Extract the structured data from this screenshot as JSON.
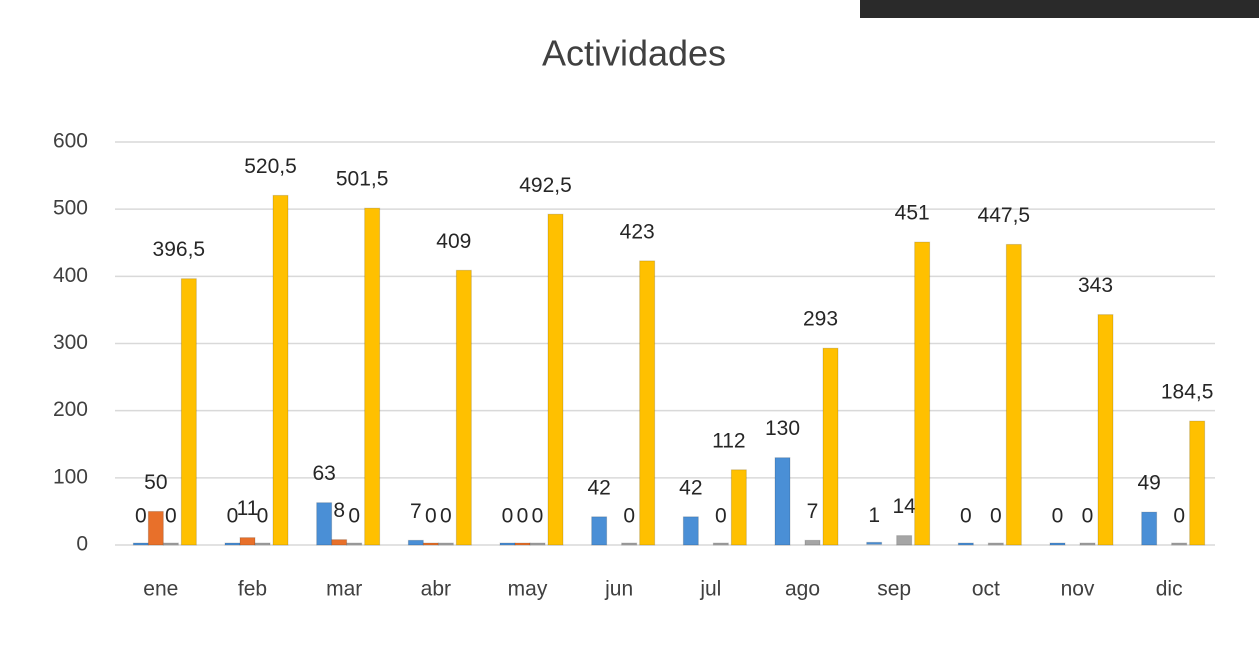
{
  "chart_data": {
    "type": "bar",
    "title": "Actividades",
    "categories": [
      "ene",
      "feb",
      "mar",
      "abr",
      "may",
      "jun",
      "jul",
      "ago",
      "sep",
      "oct",
      "nov",
      "dic"
    ],
    "series": [
      {
        "color": "#4a8fd6",
        "values": [
          0,
          0,
          63,
          7,
          0,
          42,
          42,
          130,
          1,
          0,
          0,
          49
        ]
      },
      {
        "color": "#e8702a",
        "values": [
          50,
          11,
          8,
          0,
          0,
          null,
          null,
          null,
          null,
          null,
          null,
          null
        ]
      },
      {
        "color": "#a5a5a5",
        "values": [
          0,
          0,
          0,
          0,
          0,
          0,
          0,
          7,
          14,
          0,
          0,
          0
        ]
      },
      {
        "color": "#ffc000",
        "values": [
          396.5,
          520.5,
          501.5,
          409,
          492.5,
          423,
          112,
          293,
          451,
          447.5,
          343,
          184.5
        ],
        "value_labels": [
          "396,5",
          "520,5",
          "501,5",
          "409",
          "492,5",
          "423",
          "112",
          "293",
          "451",
          "447,5",
          "343",
          "184,5"
        ]
      }
    ],
    "ylim": [
      0,
      600
    ],
    "yticks": [
      0,
      100,
      200,
      300,
      400,
      500,
      600
    ],
    "grid": true
  }
}
